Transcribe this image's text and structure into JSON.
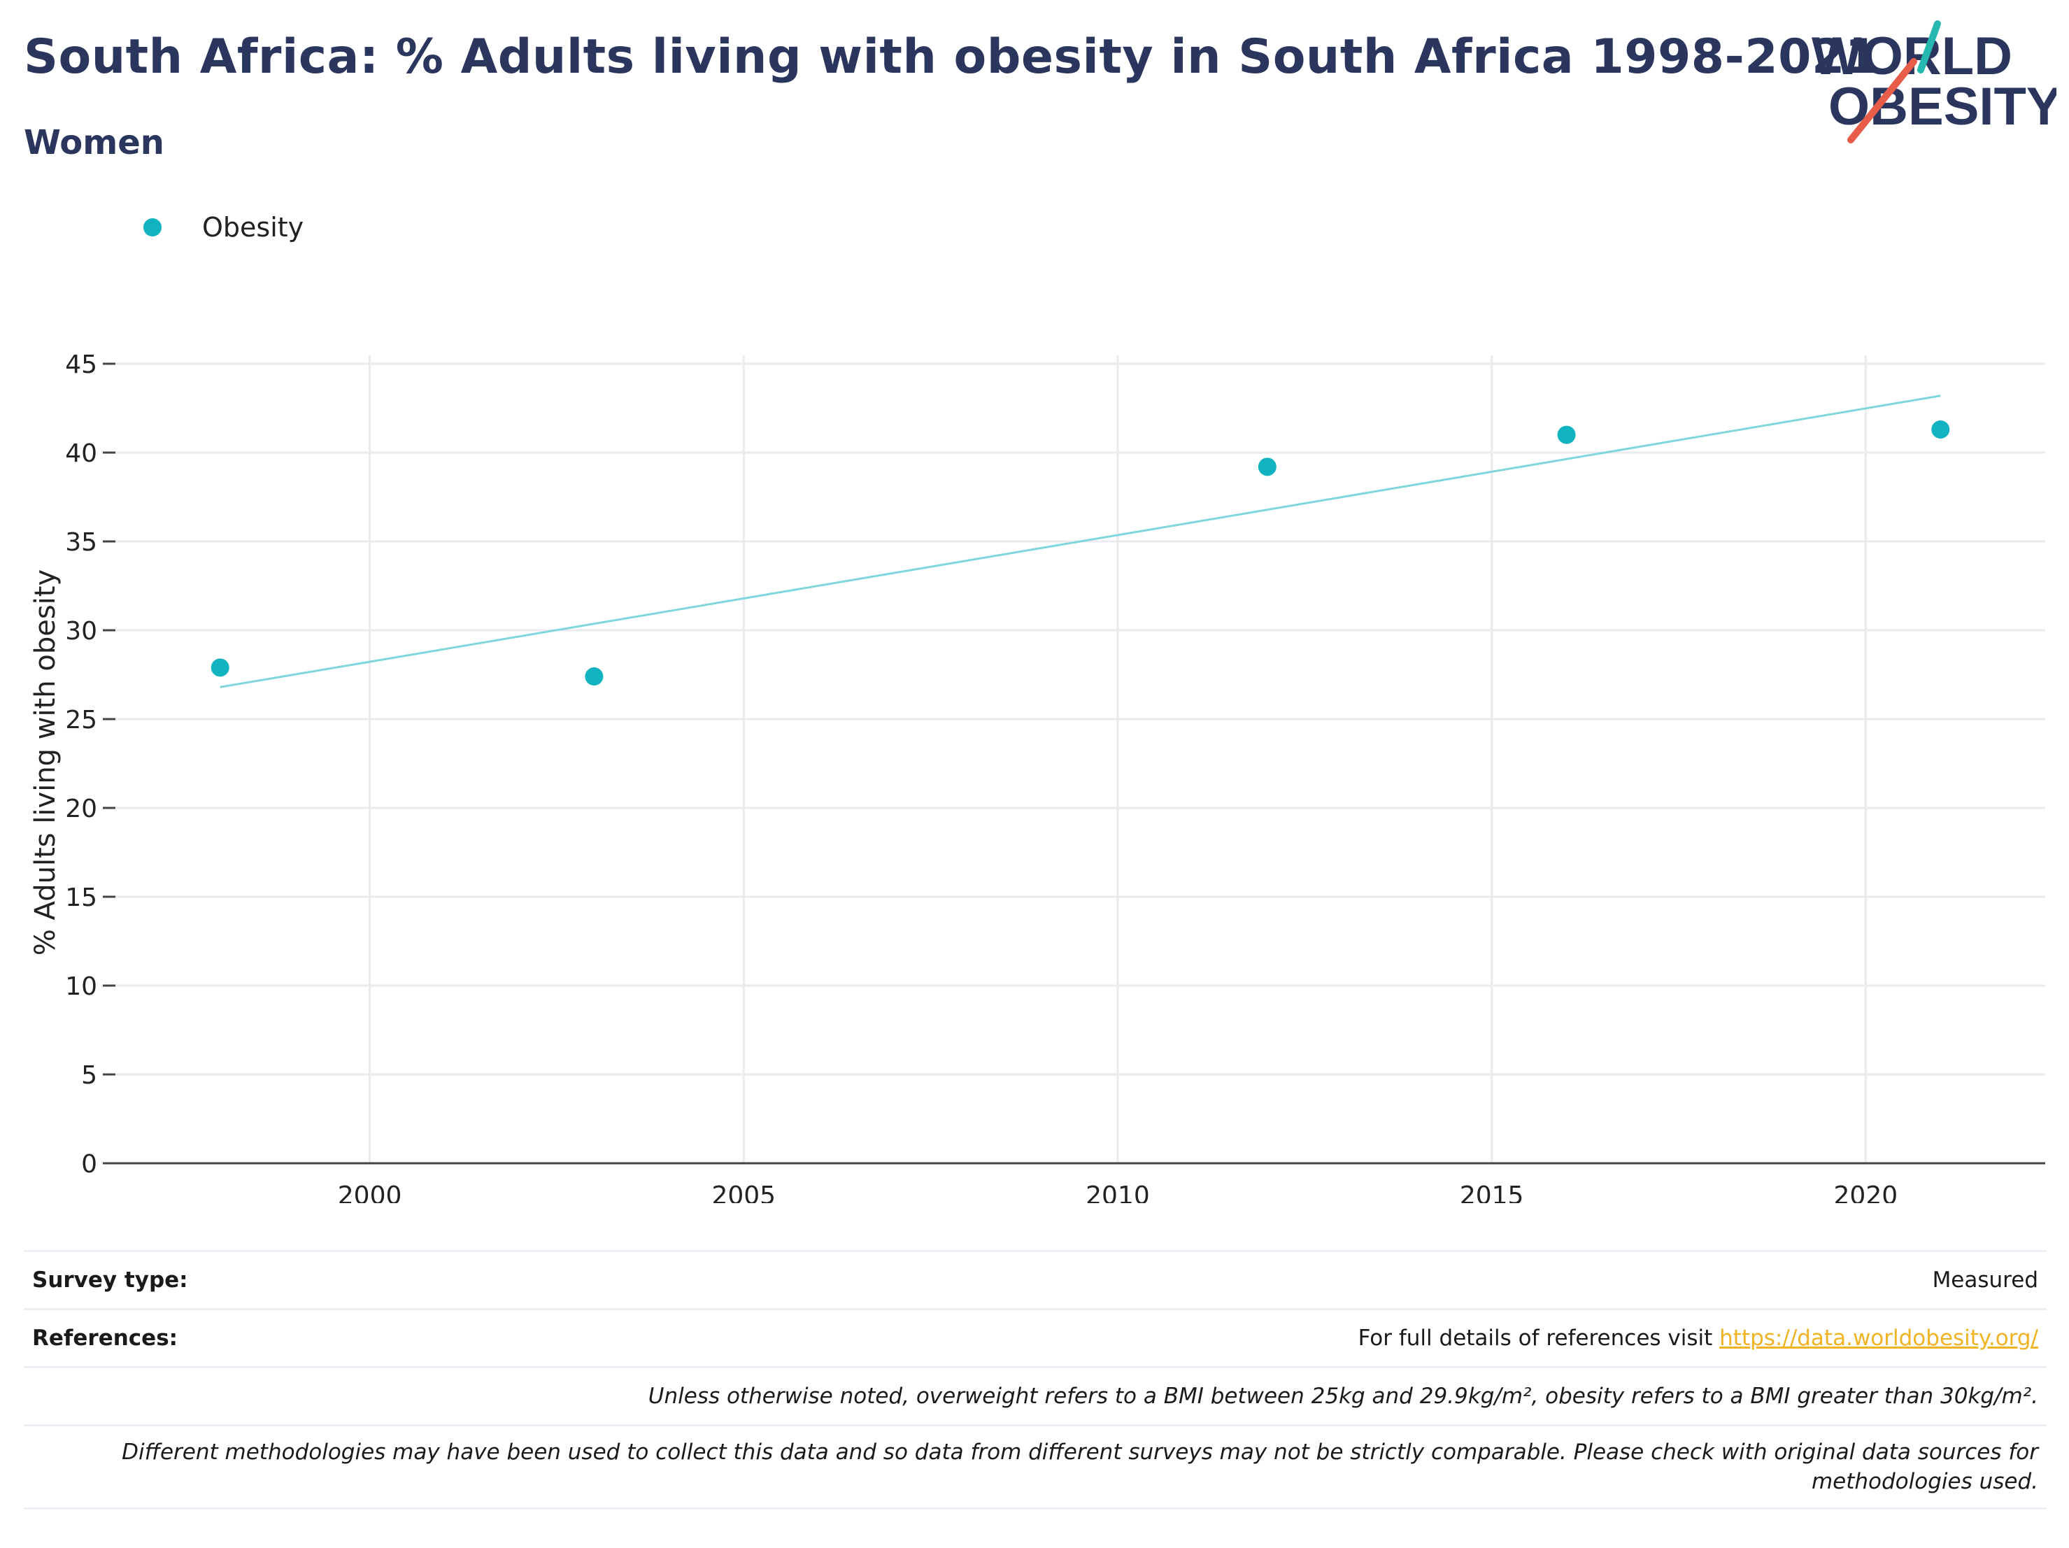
{
  "header": {
    "title": "South Africa: % Adults living with obesity in South Africa 1998-2021",
    "subtitle": "Women"
  },
  "logo": {
    "line1": "WORLD",
    "line2": "OBESITY",
    "text_color": "#2b365e",
    "accent_teal": "#25b8b0",
    "accent_red": "#e85c4a"
  },
  "chart_data": {
    "type": "scatter",
    "series": [
      {
        "name": "Obesity",
        "color": "#10b3bf",
        "x": [
          1998,
          2003,
          2012,
          2016,
          2021
        ],
        "y": [
          27.9,
          27.4,
          39.2,
          41.0,
          41.3
        ]
      }
    ],
    "trendline": {
      "color": "#7fd6dd",
      "x": [
        1998,
        2021
      ],
      "y": [
        26.8,
        43.2
      ]
    },
    "xlim": [
      1996.6,
      2022.4
    ],
    "ylim": [
      0,
      45
    ],
    "xticks": [
      2000,
      2005,
      2010,
      2015,
      2020
    ],
    "yticks": [
      0,
      5,
      10,
      15,
      20,
      25,
      30,
      35,
      40,
      45
    ],
    "ylabel": "% Adults living with obesity",
    "xlabel": "",
    "grid": true,
    "legend_position": "top-left"
  },
  "footer": {
    "survey_type_label": "Survey type:",
    "survey_type_value": "Measured",
    "references_label": "References:",
    "references_text": "For full details of references visit ",
    "references_link": "https://data.worldobesity.org/",
    "note1": "Unless otherwise noted, overweight refers to a BMI between 25kg and 29.9kg/m², obesity refers to a BMI greater than 30kg/m².",
    "note2_line1": "Different methodologies may have been used to collect this data and so data from different surveys may not be strictly comparable. Please check with original data sources for",
    "note2_line2": "methodologies used."
  }
}
